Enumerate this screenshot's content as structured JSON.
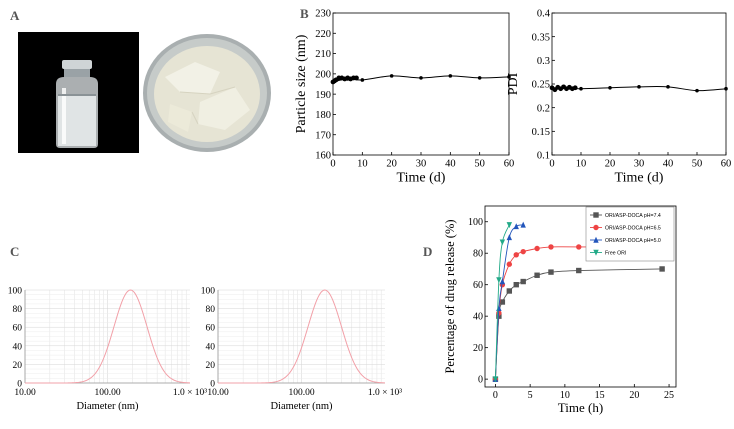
{
  "panels": {
    "a": "A",
    "b": "B",
    "c": "C",
    "d": "D"
  },
  "chart_data": [
    {
      "id": "B-left",
      "type": "line",
      "xlabel": "Time (d)",
      "ylabel": "Particle size (nm)",
      "xlim": [
        0,
        60
      ],
      "ylim": [
        160,
        230
      ],
      "xticks": [
        "0",
        "10",
        "20",
        "30",
        "40",
        "50",
        "60"
      ],
      "yticks": [
        "160",
        "170",
        "180",
        "190",
        "200",
        "210",
        "220",
        "230"
      ],
      "grid": false,
      "points": [
        [
          0,
          196
        ],
        [
          0.5,
          196.5
        ],
        [
          1,
          197
        ],
        [
          2,
          198
        ],
        [
          3,
          198
        ],
        [
          4,
          197.5
        ],
        [
          5,
          198
        ],
        [
          6,
          197.5
        ],
        [
          7,
          198
        ],
        [
          8,
          198
        ]
      ],
      "curve": [
        [
          0,
          196
        ],
        [
          5,
          197.5
        ],
        [
          10,
          197
        ],
        [
          20,
          199
        ],
        [
          30,
          198
        ],
        [
          40,
          199
        ],
        [
          50,
          198
        ],
        [
          60,
          198.5
        ]
      ]
    },
    {
      "id": "B-right",
      "type": "line",
      "xlabel": "Time (d)",
      "ylabel": "PDI",
      "xlim": [
        0,
        60
      ],
      "ylim": [
        0.1,
        0.4
      ],
      "xticks": [
        "0",
        "10",
        "20",
        "30",
        "40",
        "50",
        "60"
      ],
      "yticks": [
        "0.1",
        "0.15",
        "0.2",
        "0.25",
        "0.3",
        "0.35",
        "0.4"
      ],
      "grid": false,
      "points": [
        [
          0,
          0.242
        ],
        [
          1,
          0.238
        ],
        [
          2,
          0.243
        ],
        [
          3,
          0.24
        ],
        [
          4,
          0.244
        ],
        [
          5,
          0.24
        ],
        [
          6,
          0.243
        ],
        [
          7,
          0.24
        ],
        [
          8,
          0.242
        ]
      ],
      "curve": [
        [
          0,
          0.242
        ],
        [
          10,
          0.24
        ],
        [
          20,
          0.242
        ],
        [
          30,
          0.244
        ],
        [
          40,
          0.244
        ],
        [
          50,
          0.236
        ],
        [
          60,
          0.24
        ]
      ]
    },
    {
      "id": "C-left",
      "type": "line",
      "xlabel": "Diameter (nm)",
      "xlim": [
        10,
        1000
      ],
      "xscale": "log",
      "ylim": [
        0,
        100
      ],
      "xticks": [
        "10.00",
        "100.00",
        "1.0 × 10³"
      ],
      "yticks": [
        "0",
        "20",
        "40",
        "60",
        "80",
        "100"
      ],
      "grid": true,
      "peak_x": 190,
      "peak_y": 100,
      "log_sigma": 0.2
    },
    {
      "id": "C-right",
      "type": "line",
      "xlabel": "Diameter (nm)",
      "xlim": [
        10,
        1000
      ],
      "xscale": "log",
      "ylim": [
        0,
        100
      ],
      "xticks": [
        "10.00",
        "100.00",
        "1.0 × 10³"
      ],
      "yticks": [
        "0",
        "20",
        "40",
        "60",
        "80",
        "100"
      ],
      "grid": true,
      "peak_x": 190,
      "peak_y": 100,
      "log_sigma": 0.2
    },
    {
      "id": "D",
      "type": "line",
      "xlabel": "Time (h)",
      "ylabel": "Percentage of drug release (%)",
      "xlim": [
        -1.5,
        26
      ],
      "ylim": [
        -5,
        110
      ],
      "xticks": [
        "0",
        "5",
        "10",
        "15",
        "20",
        "25"
      ],
      "yticks": [
        "0",
        "20",
        "40",
        "60",
        "80",
        "100"
      ],
      "grid": false,
      "legend": "top-right",
      "series": [
        {
          "name": "ORI/ASP-DOCA  pH=7.4",
          "color": "#555555",
          "marker": "square",
          "x": [
            0,
            0.5,
            1,
            2,
            3,
            4,
            6,
            8,
            12,
            24
          ],
          "y": [
            0,
            40,
            49,
            56,
            60,
            62,
            66,
            68,
            69,
            70
          ]
        },
        {
          "name": "ORI/ASP-DOCA  pH=6.5",
          "color": "#ee4444",
          "marker": "circle",
          "x": [
            0,
            0.5,
            1,
            2,
            3,
            4,
            6,
            8,
            12,
            24
          ],
          "y": [
            0,
            42,
            60,
            73,
            79,
            81,
            83,
            84,
            84,
            84
          ]
        },
        {
          "name": "ORI/ASP-DOCA  pH=5.0",
          "color": "#2255bb",
          "marker": "triangle-up",
          "x": [
            0,
            0.5,
            1,
            2,
            3,
            4
          ],
          "y": [
            0,
            45,
            62,
            90,
            97,
            98
          ]
        },
        {
          "name": "Free ORI",
          "color": "#22aa88",
          "marker": "triangle-down",
          "x": [
            0,
            0.5,
            1,
            2
          ],
          "y": [
            0,
            63,
            87,
            98
          ]
        }
      ]
    }
  ]
}
